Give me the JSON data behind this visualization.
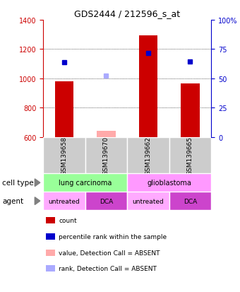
{
  "title": "GDS2444 / 212596_s_at",
  "samples": [
    "GSM139658",
    "GSM139670",
    "GSM139662",
    "GSM139665"
  ],
  "bar_values": [
    980,
    640,
    1295,
    965
  ],
  "bar_colors": [
    "#cc0000",
    "#ffaaaa",
    "#cc0000",
    "#cc0000"
  ],
  "blue_dot_values": [
    1110,
    null,
    1175,
    1115
  ],
  "rank_dot_values": [
    null,
    1020,
    null,
    null
  ],
  "ylim": [
    600,
    1400
  ],
  "yticks_left": [
    600,
    800,
    1000,
    1200,
    1400
  ],
  "yticks_right": [
    0,
    25,
    50,
    75,
    100
  ],
  "yticks_right_labels": [
    "0",
    "25",
    "50",
    "75",
    "100%"
  ],
  "grid_values": [
    800,
    1000,
    1200
  ],
  "cell_types": [
    [
      "lung carcinoma",
      2
    ],
    [
      "glioblastoma",
      2
    ]
  ],
  "cell_type_colors": [
    "#99ff99",
    "#ff99ff"
  ],
  "agents": [
    "untreated",
    "DCA",
    "untreated",
    "DCA"
  ],
  "agent_colors": [
    "#ffaaff",
    "#cc44cc",
    "#ffaaff",
    "#cc44cc"
  ],
  "left_axis_color": "#cc0000",
  "right_axis_color": "#0000cc",
  "legend_items": [
    {
      "label": "count",
      "color": "#cc0000"
    },
    {
      "label": "percentile rank within the sample",
      "color": "#0000cc"
    },
    {
      "label": "value, Detection Call = ABSENT",
      "color": "#ffaaaa"
    },
    {
      "label": "rank, Detection Call = ABSENT",
      "color": "#aaaaff"
    }
  ]
}
